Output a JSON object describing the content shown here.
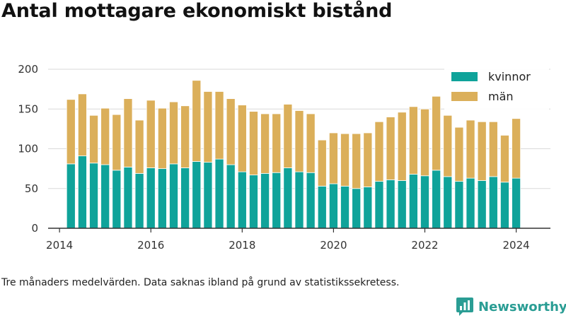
{
  "title": "Antal mottagare ekonomiskt bistånd",
  "caption": "Tre månaders medelvärden. Data saknas ibland på grund av statistikssekretess.",
  "brand": {
    "name": "Newsworthy",
    "icon": "newsworthy-logo-icon",
    "color": "#2a9d94"
  },
  "colors": {
    "kvinnor": "#0fa39a",
    "man": "#dbaf5a",
    "grid": "#d9d9d9",
    "axis": "#333333"
  },
  "chart_data": {
    "type": "bar",
    "stacked": true,
    "title": "Antal mottagare ekonomiskt bistånd",
    "xlabel": "",
    "ylabel": "",
    "ylim": [
      0,
      200
    ],
    "yticks": [
      0,
      50,
      100,
      150,
      200
    ],
    "xlim": [
      2013.75,
      2024.75
    ],
    "xticks": [
      2014,
      2016,
      2018,
      2020,
      2022,
      2024
    ],
    "grid": true,
    "legend_position": "top-right",
    "x": [
      2014.25,
      2014.5,
      2014.75,
      2015.0,
      2015.25,
      2015.5,
      2015.75,
      2016.0,
      2016.25,
      2016.5,
      2016.75,
      2017.0,
      2017.25,
      2017.5,
      2017.75,
      2018.0,
      2018.25,
      2018.5,
      2018.75,
      2019.0,
      2019.25,
      2019.5,
      2019.75,
      2020.0,
      2020.25,
      2020.5,
      2020.75,
      2021.0,
      2021.25,
      2021.5,
      2021.75,
      2022.0,
      2022.25,
      2022.5,
      2022.75,
      2023.0,
      2023.25,
      2023.5,
      2023.75,
      2024.0
    ],
    "series": [
      {
        "name": "kvinnor",
        "color": "#0fa39a",
        "values": [
          81,
          91,
          82,
          80,
          73,
          77,
          69,
          76,
          75,
          81,
          76,
          84,
          83,
          87,
          80,
          71,
          67,
          69,
          70,
          76,
          71,
          70,
          53,
          56,
          53,
          50,
          52,
          59,
          61,
          60,
          68,
          66,
          73,
          65,
          59,
          63,
          60,
          65,
          58,
          63
        ]
      },
      {
        "name": "män",
        "color": "#dbaf5a",
        "values": [
          81,
          78,
          60,
          71,
          70,
          86,
          67,
          85,
          76,
          78,
          78,
          102,
          89,
          85,
          83,
          84,
          80,
          75,
          74,
          80,
          77,
          74,
          58,
          64,
          66,
          69,
          68,
          75,
          79,
          86,
          85,
          84,
          93,
          77,
          68,
          73,
          74,
          69,
          59,
          75
        ]
      }
    ]
  }
}
